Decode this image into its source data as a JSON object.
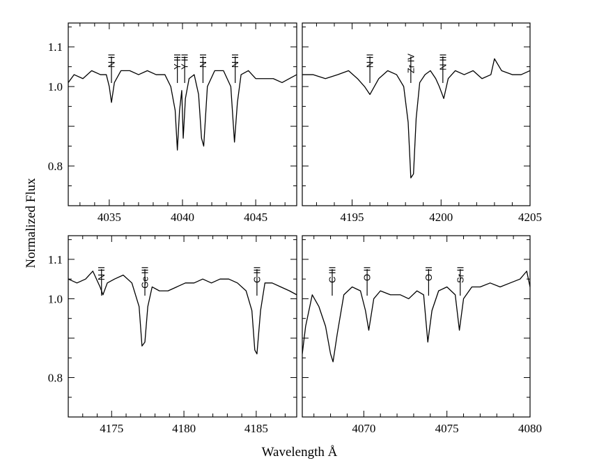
{
  "figure": {
    "xlabel": "Wavelength Å",
    "ylabel": "Normalized Flux"
  },
  "chart_data": [
    {
      "type": "line",
      "xlim": [
        4032.2,
        4047.8
      ],
      "ylim": [
        0.7,
        1.16
      ],
      "xticks": [
        4035,
        4040,
        4045
      ],
      "yticks": [
        0.8,
        1.0,
        1.1
      ],
      "series": [
        {
          "x": [
            4032.2,
            4032.6,
            4033.2,
            4033.8,
            4034.4,
            4034.8,
            4035.0,
            4035.15,
            4035.35,
            4035.8,
            4036.4,
            4037.0,
            4037.6,
            4038.2,
            4038.8,
            4039.2,
            4039.5,
            4039.65,
            4039.8,
            4039.95,
            4040.05,
            4040.2,
            4040.45,
            4040.8,
            4041.1,
            4041.3,
            4041.45,
            4041.7,
            4042.2,
            4042.8,
            4043.3,
            4043.55,
            4043.75,
            4044.0,
            4044.5,
            4045.0,
            4045.6,
            4046.2,
            4046.8,
            4047.3,
            4047.8
          ],
          "y": [
            1.01,
            1.03,
            1.02,
            1.04,
            1.03,
            1.03,
            1.0,
            0.96,
            1.01,
            1.04,
            1.04,
            1.03,
            1.04,
            1.03,
            1.03,
            1.0,
            0.94,
            0.84,
            0.94,
            0.99,
            0.87,
            0.97,
            1.02,
            1.03,
            0.98,
            0.87,
            0.85,
            1.0,
            1.04,
            1.04,
            1.0,
            0.86,
            0.96,
            1.03,
            1.04,
            1.02,
            1.02,
            1.02,
            1.01,
            1.02,
            1.03
          ]
        }
      ],
      "lines": [
        {
          "label": "N II",
          "x": 4035.15
        },
        {
          "label": "Y III",
          "x": 4039.65
        },
        {
          "label": "Y III",
          "x": 4040.15
        },
        {
          "label": "N II",
          "x": 4041.4
        },
        {
          "label": "N II",
          "x": 4043.6
        }
      ]
    },
    {
      "type": "line",
      "xlim": [
        4192.2,
        4205.0
      ],
      "ylim": [
        0.7,
        1.16
      ],
      "xticks": [
        4195,
        4200,
        4205
      ],
      "yticks": [
        0.8,
        1.0,
        1.1
      ],
      "series": [
        {
          "x": [
            4192.2,
            4192.8,
            4193.5,
            4194.2,
            4194.8,
            4195.3,
            4195.7,
            4196.0,
            4196.5,
            4197.0,
            4197.5,
            4197.9,
            4198.15,
            4198.3,
            4198.45,
            4198.6,
            4198.8,
            4199.1,
            4199.4,
            4199.7,
            4199.9,
            4200.15,
            4200.4,
            4200.8,
            4201.3,
            4201.8,
            4202.3,
            4202.8,
            4203.0,
            4203.4,
            4204.0,
            4204.5,
            4205.0
          ],
          "y": [
            1.03,
            1.03,
            1.02,
            1.03,
            1.04,
            1.02,
            1.0,
            0.98,
            1.02,
            1.04,
            1.03,
            1.0,
            0.91,
            0.77,
            0.78,
            0.92,
            1.01,
            1.03,
            1.04,
            1.02,
            1.0,
            0.97,
            1.02,
            1.04,
            1.03,
            1.04,
            1.02,
            1.03,
            1.07,
            1.04,
            1.03,
            1.03,
            1.04
          ]
        }
      ],
      "lines": [
        {
          "label": "N II",
          "x": 4196.0
        },
        {
          "label": "Zr IV",
          "x": 4198.3
        },
        {
          "label": "N III",
          "x": 4200.1
        }
      ]
    },
    {
      "type": "line",
      "xlim": [
        4172.0,
        4187.8
      ],
      "ylim": [
        0.7,
        1.16
      ],
      "xticks": [
        4175,
        4180,
        4185
      ],
      "yticks": [
        0.8,
        1.0,
        1.1
      ],
      "series": [
        {
          "x": [
            4172.0,
            4172.6,
            4173.2,
            4173.7,
            4174.2,
            4174.4,
            4174.7,
            4175.2,
            4175.8,
            4176.4,
            4176.9,
            4177.1,
            4177.3,
            4177.5,
            4177.8,
            4178.3,
            4178.9,
            4179.5,
            4180.1,
            4180.7,
            4181.3,
            4181.9,
            4182.5,
            4183.1,
            4183.7,
            4184.3,
            4184.7,
            4184.9,
            4185.05,
            4185.3,
            4185.6,
            4186.1,
            4186.7,
            4187.3,
            4187.8
          ],
          "y": [
            1.05,
            1.04,
            1.05,
            1.07,
            1.03,
            1.01,
            1.04,
            1.05,
            1.06,
            1.04,
            0.98,
            0.88,
            0.89,
            0.98,
            1.03,
            1.02,
            1.02,
            1.03,
            1.04,
            1.04,
            1.05,
            1.04,
            1.05,
            1.05,
            1.04,
            1.02,
            0.97,
            0.87,
            0.86,
            0.97,
            1.04,
            1.04,
            1.03,
            1.02,
            1.01
          ]
        }
      ],
      "lines": [
        {
          "label": "N II",
          "x": 4174.3
        },
        {
          "label": "Ge III",
          "x": 4177.3
        },
        {
          "label": "C III",
          "x": 4185.05
        }
      ]
    },
    {
      "type": "line",
      "xlim": [
        4066.3,
        4080.0
      ],
      "ylim": [
        0.7,
        1.16
      ],
      "xticks": [
        4070,
        4075,
        4080
      ],
      "yticks": [
        0.8,
        1.0,
        1.1
      ],
      "series": [
        {
          "x": [
            4066.3,
            4066.5,
            4066.9,
            4067.3,
            4067.7,
            4068.0,
            4068.15,
            4068.4,
            4068.8,
            4069.3,
            4069.8,
            4070.1,
            4070.3,
            4070.6,
            4071.0,
            4071.6,
            4072.2,
            4072.7,
            4073.2,
            4073.6,
            4073.85,
            4074.1,
            4074.5,
            4075.0,
            4075.5,
            4075.75,
            4076.0,
            4076.5,
            4077.0,
            4077.6,
            4078.2,
            4078.8,
            4079.4,
            4079.8,
            4080.0
          ],
          "y": [
            0.86,
            0.93,
            1.01,
            0.98,
            0.93,
            0.86,
            0.84,
            0.91,
            1.01,
            1.03,
            1.02,
            0.97,
            0.92,
            1.0,
            1.02,
            1.01,
            1.01,
            1.0,
            1.02,
            1.01,
            0.89,
            0.97,
            1.02,
            1.03,
            1.01,
            0.92,
            1.0,
            1.03,
            1.03,
            1.04,
            1.03,
            1.04,
            1.05,
            1.07,
            1.03
          ]
        }
      ],
      "lines": [
        {
          "label": "C III",
          "x": 4068.1
        },
        {
          "label": "O II",
          "x": 4070.2
        },
        {
          "label": "O II",
          "x": 4073.9
        },
        {
          "label": "Sr II",
          "x": 4075.8
        }
      ]
    }
  ]
}
